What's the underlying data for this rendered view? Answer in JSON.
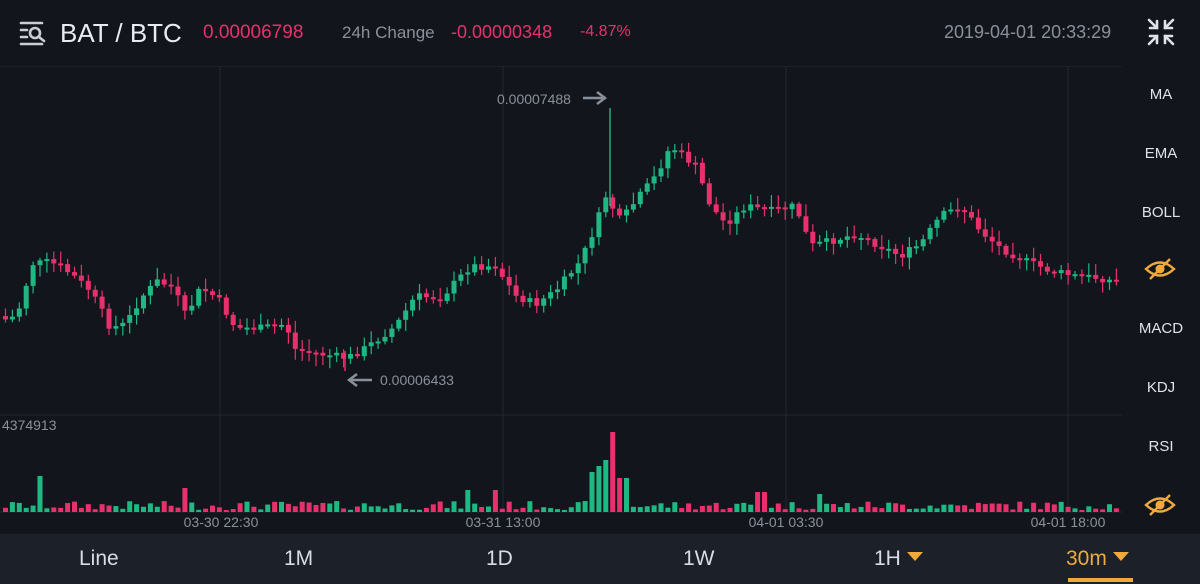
{
  "header": {
    "pair": "BAT / BTC",
    "last_price": "0.00006798",
    "change_label": "24h Change",
    "change_abs": "-0.00000348",
    "change_pct": "-4.87%",
    "timestamp": "2019-04-01 20:33:29"
  },
  "chart": {
    "high_label": "0.00007488",
    "low_label": "0.00006433",
    "volume_label": "4374913",
    "x_ticks": [
      "03-30 22:30",
      "03-31 13:00",
      "04-01 03:30",
      "04-01 18:00"
    ],
    "colors": {
      "up": "#1fb883",
      "down": "#e8306c",
      "grid": "#232831",
      "text": "#8a909a"
    }
  },
  "indicators": {
    "main": [
      "MA",
      "EMA",
      "BOLL"
    ],
    "sub": [
      "MACD",
      "KDJ",
      "RSI"
    ],
    "toggle_icon": "eye-icon"
  },
  "intervals": {
    "tabs": [
      {
        "label": "Line",
        "dropdown": false
      },
      {
        "label": "1M",
        "dropdown": false
      },
      {
        "label": "1D",
        "dropdown": false
      },
      {
        "label": "1W",
        "dropdown": false
      },
      {
        "label": "1H",
        "dropdown": true
      },
      {
        "label": "30m",
        "dropdown": true
      }
    ],
    "active": "30m"
  }
}
